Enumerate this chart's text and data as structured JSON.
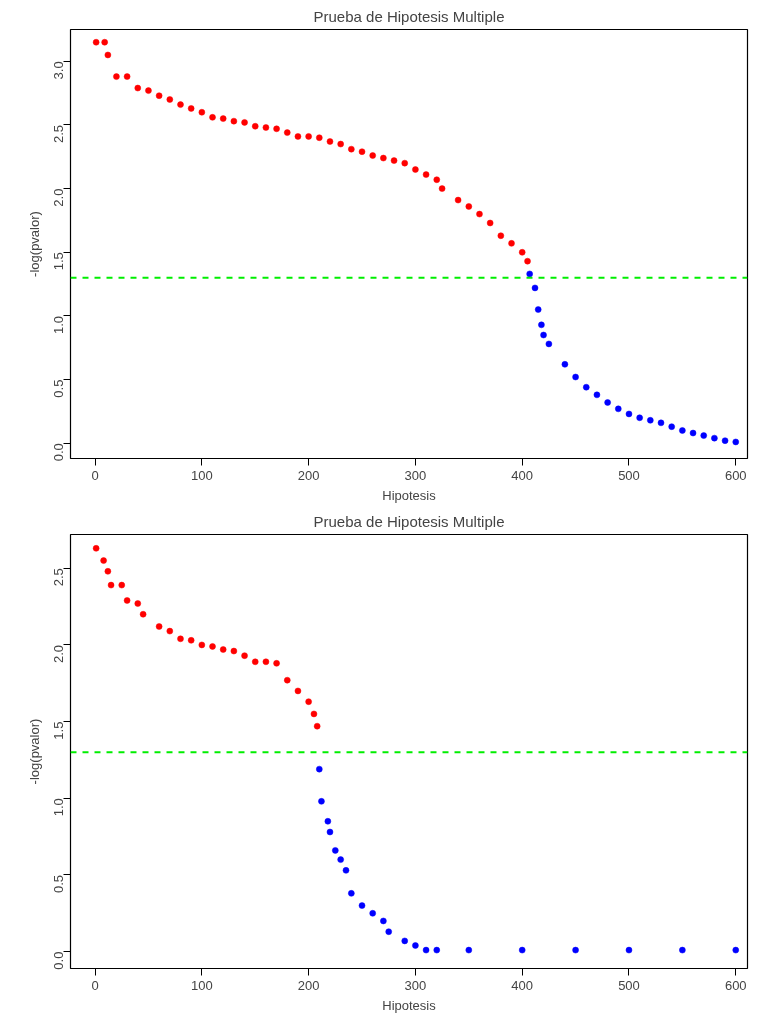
{
  "chart_data": [
    {
      "type": "scatter",
      "title": "Prueba de Hipotesis Multiple",
      "xlabel": "Hipotesis",
      "ylabel": "-log(pvalor)",
      "xlim": [
        -23,
        611
      ],
      "ylim": [
        -0.12,
        3.25
      ],
      "xticks": [
        0,
        100,
        200,
        300,
        400,
        500,
        600
      ],
      "yticks": [
        {
          "value": 0,
          "label": "0.0"
        },
        0.5,
        {
          "value": 1,
          "label": "1.0"
        },
        1.5,
        {
          "value": 2,
          "label": "2.0"
        },
        2.5,
        {
          "value": 3,
          "label": "3.0"
        }
      ],
      "marker": "circle",
      "grid": false,
      "series": [
        {
          "color": "#ff0000",
          "x": [
            1,
            9,
            12,
            20,
            30,
            40,
            50,
            60,
            70,
            80,
            90,
            100,
            110,
            120,
            130,
            140,
            150,
            160,
            170,
            180,
            190,
            200,
            210,
            220,
            230,
            240,
            250,
            260,
            270,
            280,
            290,
            300,
            310,
            320,
            325,
            340,
            350,
            360,
            370,
            380,
            390,
            400,
            405
          ],
          "values": [
            3.15,
            3.15,
            3.05,
            2.88,
            2.88,
            2.79,
            2.77,
            2.73,
            2.7,
            2.66,
            2.63,
            2.6,
            2.56,
            2.55,
            2.53,
            2.52,
            2.49,
            2.48,
            2.47,
            2.44,
            2.41,
            2.41,
            2.4,
            2.37,
            2.35,
            2.31,
            2.29,
            2.26,
            2.24,
            2.22,
            2.2,
            2.15,
            2.11,
            2.07,
            2.0,
            1.91,
            1.86,
            1.8,
            1.73,
            1.63,
            1.57,
            1.5,
            1.43
          ]
        },
        {
          "color": "#0000ff",
          "x": [
            407,
            412,
            415,
            418,
            420,
            425,
            440,
            450,
            460,
            470,
            480,
            490,
            500,
            510,
            520,
            530,
            540,
            550,
            560,
            570,
            580,
            590,
            600
          ],
          "values": [
            1.33,
            1.22,
            1.05,
            0.93,
            0.85,
            0.78,
            0.62,
            0.52,
            0.44,
            0.38,
            0.32,
            0.27,
            0.23,
            0.2,
            0.18,
            0.16,
            0.13,
            0.1,
            0.08,
            0.06,
            0.04,
            0.02,
            0.01
          ]
        }
      ],
      "ref_lines": [
        {
          "axis": "y",
          "value": 1.3,
          "color": "#00ee00",
          "line_style": "dashed"
        }
      ]
    },
    {
      "type": "scatter",
      "title": "Prueba de Hipotesis Multiple",
      "xlabel": "Hipotesis",
      "ylabel": "-log(pvalor)",
      "xlim": [
        -23,
        611
      ],
      "ylim": [
        -0.11,
        2.72
      ],
      "xticks": [
        0,
        100,
        200,
        300,
        400,
        500,
        600
      ],
      "yticks": [
        {
          "value": 0,
          "label": "0.0"
        },
        0.5,
        {
          "value": 1,
          "label": "1.0"
        },
        1.5,
        {
          "value": 2,
          "label": "2.0"
        },
        2.5
      ],
      "marker": "circle",
      "grid": false,
      "series": [
        {
          "color": "#ff0000",
          "x": [
            1,
            8,
            12,
            15,
            25,
            30,
            40,
            45,
            60,
            70,
            80,
            90,
            100,
            110,
            120,
            130,
            140,
            150,
            160,
            170,
            180,
            190,
            200,
            205,
            208
          ],
          "values": [
            2.63,
            2.55,
            2.48,
            2.39,
            2.39,
            2.29,
            2.27,
            2.2,
            2.12,
            2.09,
            2.04,
            2.03,
            2.0,
            1.99,
            1.97,
            1.96,
            1.93,
            1.89,
            1.89,
            1.88,
            1.77,
            1.7,
            1.63,
            1.55,
            1.47
          ]
        },
        {
          "color": "#0000ff",
          "x": [
            210,
            212,
            218,
            220,
            225,
            230,
            235,
            240,
            250,
            260,
            270,
            275,
            290,
            300,
            310,
            320,
            350,
            400,
            450,
            500,
            550,
            600
          ],
          "values": [
            1.19,
            0.98,
            0.85,
            0.78,
            0.66,
            0.6,
            0.53,
            0.38,
            0.3,
            0.25,
            0.2,
            0.13,
            0.07,
            0.04,
            0.01,
            0.01,
            0.01,
            0.01,
            0.01,
            0.01,
            0.01,
            0.01
          ]
        }
      ],
      "ref_lines": [
        {
          "axis": "y",
          "value": 1.3,
          "color": "#00ee00",
          "line_style": "dashed"
        }
      ]
    }
  ]
}
